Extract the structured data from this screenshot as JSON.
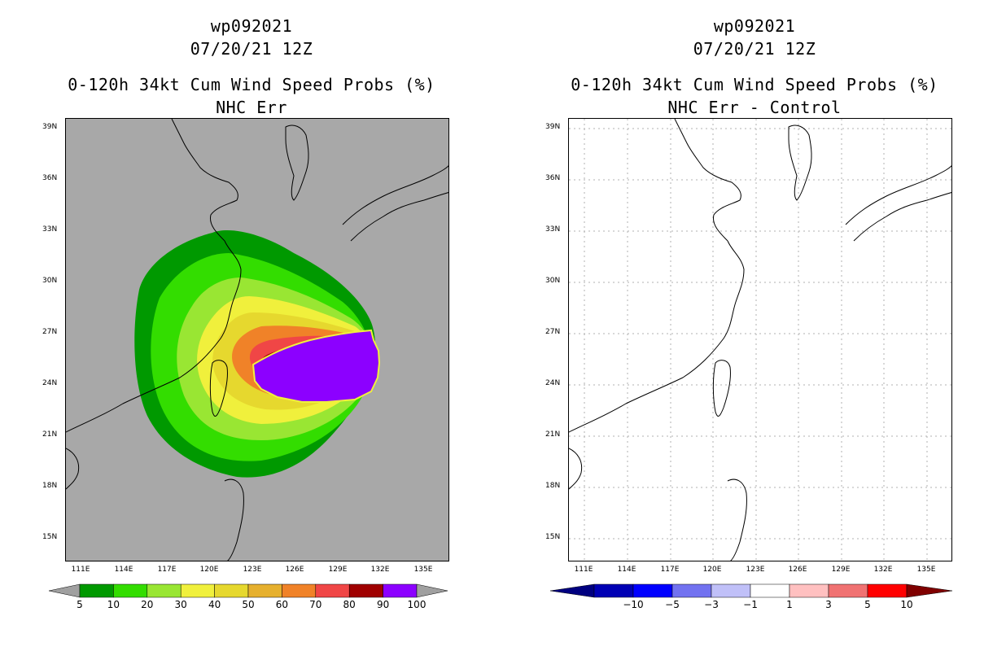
{
  "left": {
    "title1": "wp092021",
    "title2": "07/20/21 12Z",
    "title3": "0-120h 34kt Cum Wind Speed Probs (%)",
    "title4": "NHC Err",
    "background": "#a8a8a8",
    "colorbar": {
      "labels": [
        "5",
        "10",
        "20",
        "30",
        "40",
        "50",
        "60",
        "70",
        "80",
        "90",
        "100"
      ],
      "colors": [
        "#009900",
        "#33dd00",
        "#99e633",
        "#f0f03c",
        "#e6d82e",
        "#e6b02e",
        "#f08228",
        "#f04646",
        "#a00000",
        "#8c00ff"
      ],
      "end_color": "#a0a0a0"
    }
  },
  "right": {
    "title1": "wp092021",
    "title2": "07/20/21 12Z",
    "title3": "0-120h 34kt Cum Wind Speed Probs (%)",
    "title4": "NHC Err - Control",
    "background": "#ffffff",
    "colorbar": {
      "labels": [
        "−10",
        "−5",
        "−3",
        "−1",
        "1",
        "3",
        "5",
        "10"
      ],
      "colors": [
        "#0000b4",
        "#0000ff",
        "#7272f0",
        "#c0c0f8",
        "#ffffff",
        "#ffc0c0",
        "#f07272",
        "#ff0000"
      ],
      "low_color": "#000080",
      "high_color": "#800000"
    }
  },
  "axes": {
    "lat_ticks": [
      "39N",
      "36N",
      "33N",
      "30N",
      "27N",
      "24N",
      "21N",
      "18N",
      "15N"
    ],
    "lon_ticks": [
      "111E",
      "114E",
      "117E",
      "120E",
      "123E",
      "126E",
      "129E",
      "132E",
      "135E"
    ]
  },
  "icons": {
    "coastline": "coastline-icon",
    "gridlines": "gridline-icon"
  }
}
